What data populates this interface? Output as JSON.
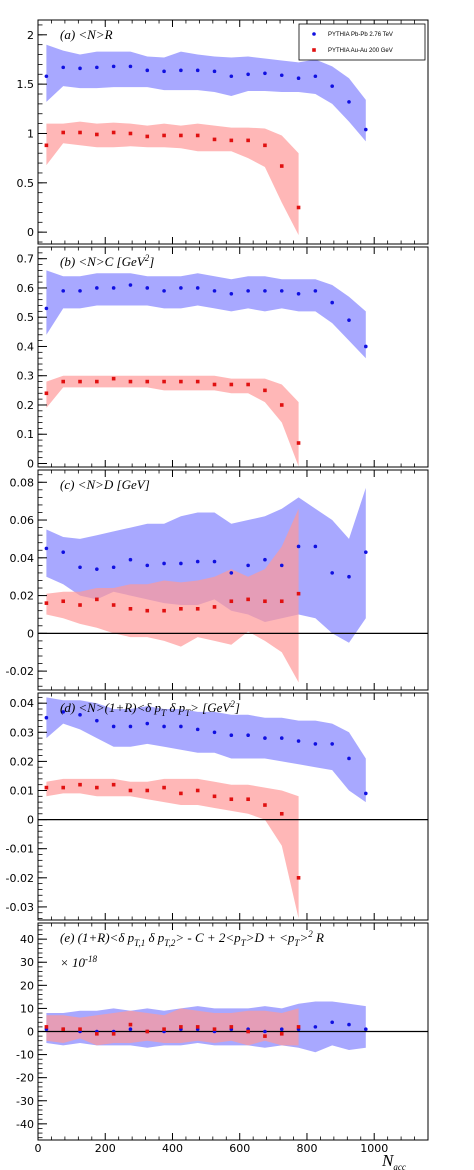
{
  "figure": {
    "x_axis_label": "N",
    "x_axis_label_sub": "acc",
    "x_ticks": [
      "0",
      "200",
      "400",
      "600",
      "800",
      "1000"
    ],
    "legend": [
      {
        "label": "PYTHIA Pb-Pb 2.76 TeV",
        "color": "#1010e0",
        "marker": "circle"
      },
      {
        "label": "PYTHIA Au-Au 200 GeV",
        "color": "#e01010",
        "marker": "square"
      }
    ],
    "colors": {
      "pbpb_marker": "#1010e0",
      "pbpb_band": "#9999ff",
      "auau_marker": "#e01010",
      "auau_band": "#ff9999"
    }
  },
  "chart_data": [
    {
      "type": "scatter",
      "title": "(a) <N>R",
      "xlim": [
        0,
        1160
      ],
      "ylim": [
        -0.12,
        2.15
      ],
      "yticks": [
        0,
        0.5,
        1,
        1.5,
        2
      ],
      "ytick_labels": [
        "0",
        "0.5",
        "1",
        "1.5",
        "2"
      ],
      "zero_line": false,
      "series": [
        {
          "name": "PYTHIA Pb-Pb 2.76 TeV",
          "x": [
            25,
            75,
            125,
            175,
            225,
            275,
            325,
            375,
            425,
            475,
            525,
            575,
            625,
            675,
            725,
            775,
            825,
            875,
            925,
            975
          ],
          "y": [
            1.58,
            1.67,
            1.66,
            1.67,
            1.68,
            1.68,
            1.64,
            1.63,
            1.64,
            1.64,
            1.63,
            1.58,
            1.6,
            1.61,
            1.59,
            1.56,
            1.58,
            1.48,
            1.32,
            1.04
          ],
          "lower": [
            1.32,
            1.48,
            1.46,
            1.46,
            1.47,
            1.47,
            1.47,
            1.44,
            1.44,
            1.44,
            1.42,
            1.38,
            1.43,
            1.43,
            1.42,
            1.42,
            1.4,
            1.3,
            1.12,
            0.92
          ],
          "upper": [
            1.9,
            1.84,
            1.8,
            1.83,
            1.83,
            1.83,
            1.78,
            1.77,
            1.83,
            1.8,
            1.78,
            1.77,
            1.78,
            1.76,
            1.74,
            1.72,
            1.75,
            1.68,
            1.56,
            1.34
          ]
        },
        {
          "name": "PYTHIA Au-Au 200 GeV",
          "x": [
            25,
            75,
            125,
            175,
            225,
            275,
            325,
            375,
            425,
            475,
            525,
            575,
            625,
            675,
            725,
            775
          ],
          "y": [
            0.88,
            1.01,
            1.01,
            0.99,
            1.01,
            1.0,
            0.97,
            0.98,
            0.98,
            0.98,
            0.94,
            0.93,
            0.93,
            0.88,
            0.67,
            0.25
          ],
          "lower": [
            0.68,
            0.9,
            0.88,
            0.86,
            0.86,
            0.87,
            0.86,
            0.86,
            0.85,
            0.82,
            0.82,
            0.82,
            0.75,
            0.66,
            0.3,
            -0.03
          ],
          "upper": [
            1.1,
            1.1,
            1.12,
            1.1,
            1.11,
            1.1,
            1.08,
            1.1,
            1.08,
            1.1,
            1.08,
            1.06,
            1.06,
            1.05,
            0.98,
            0.8
          ]
        }
      ]
    },
    {
      "type": "scatter",
      "title": "(b) <N>C [GeV",
      "title_sup": "2",
      "title_tail": "]",
      "xlim": [
        0,
        1160
      ],
      "ylim": [
        -0.012,
        0.74
      ],
      "yticks": [
        0,
        0.1,
        0.2,
        0.3,
        0.4,
        0.5,
        0.6,
        0.7
      ],
      "ytick_labels": [
        "0",
        "0.1",
        "0.2",
        "0.3",
        "0.4",
        "0.5",
        "0.6",
        "0.7"
      ],
      "zero_line": false,
      "series": [
        {
          "name": "PYTHIA Pb-Pb 2.76 TeV",
          "x": [
            25,
            75,
            125,
            175,
            225,
            275,
            325,
            375,
            425,
            475,
            525,
            575,
            625,
            675,
            725,
            775,
            825,
            875,
            925,
            975
          ],
          "y": [
            0.53,
            0.59,
            0.59,
            0.6,
            0.6,
            0.61,
            0.6,
            0.59,
            0.6,
            0.6,
            0.59,
            0.58,
            0.59,
            0.59,
            0.59,
            0.58,
            0.59,
            0.55,
            0.49,
            0.4
          ],
          "lower": [
            0.44,
            0.53,
            0.53,
            0.54,
            0.54,
            0.54,
            0.54,
            0.53,
            0.53,
            0.54,
            0.53,
            0.52,
            0.53,
            0.52,
            0.53,
            0.52,
            0.52,
            0.48,
            0.42,
            0.36
          ],
          "upper": [
            0.66,
            0.64,
            0.64,
            0.65,
            0.65,
            0.65,
            0.64,
            0.64,
            0.64,
            0.65,
            0.64,
            0.63,
            0.64,
            0.64,
            0.63,
            0.63,
            0.63,
            0.61,
            0.57,
            0.52
          ]
        },
        {
          "name": "PYTHIA Au-Au 200 GeV",
          "x": [
            25,
            75,
            125,
            175,
            225,
            275,
            325,
            375,
            425,
            475,
            525,
            575,
            625,
            675,
            725,
            775
          ],
          "y": [
            0.24,
            0.28,
            0.28,
            0.28,
            0.29,
            0.28,
            0.28,
            0.28,
            0.28,
            0.28,
            0.27,
            0.27,
            0.27,
            0.25,
            0.2,
            0.07
          ],
          "lower": [
            0.19,
            0.26,
            0.26,
            0.26,
            0.26,
            0.26,
            0.26,
            0.25,
            0.25,
            0.25,
            0.25,
            0.24,
            0.24,
            0.21,
            0.14,
            -0.01
          ],
          "upper": [
            0.28,
            0.3,
            0.3,
            0.3,
            0.3,
            0.3,
            0.3,
            0.3,
            0.3,
            0.3,
            0.3,
            0.29,
            0.29,
            0.29,
            0.27,
            0.21
          ]
        }
      ]
    },
    {
      "type": "scatter",
      "title": "(c) <N>D [GeV]",
      "xlim": [
        0,
        1160
      ],
      "ylim": [
        -0.03,
        0.0865
      ],
      "yticks": [
        -0.02,
        0,
        0.02,
        0.04,
        0.06,
        0.08
      ],
      "ytick_labels": [
        "-0.02",
        "0",
        "0.02",
        "0.04",
        "0.06",
        "0.08"
      ],
      "zero_line": true,
      "series": [
        {
          "name": "PYTHIA Pb-Pb 2.76 TeV",
          "x": [
            25,
            75,
            125,
            175,
            225,
            275,
            325,
            375,
            425,
            475,
            525,
            575,
            625,
            675,
            725,
            775,
            825,
            875,
            925,
            975
          ],
          "y": [
            0.045,
            0.043,
            0.035,
            0.034,
            0.035,
            0.039,
            0.036,
            0.037,
            0.037,
            0.038,
            0.038,
            0.032,
            0.036,
            0.039,
            0.036,
            0.046,
            0.046,
            0.032,
            0.03,
            0.043
          ],
          "lower": [
            0.03,
            0.026,
            0.02,
            0.018,
            0.022,
            0.02,
            0.018,
            0.016,
            0.015,
            0.015,
            0.018,
            0.012,
            0.01,
            0.006,
            0.008,
            0.01,
            0.008,
            0.0,
            -0.005,
            0.008
          ],
          "upper": [
            0.055,
            0.051,
            0.05,
            0.052,
            0.054,
            0.056,
            0.058,
            0.058,
            0.062,
            0.064,
            0.064,
            0.058,
            0.06,
            0.062,
            0.066,
            0.072,
            0.066,
            0.06,
            0.05,
            0.077
          ]
        },
        {
          "name": "PYTHIA Au-Au 200 GeV",
          "x": [
            25,
            75,
            125,
            175,
            225,
            275,
            325,
            375,
            425,
            475,
            525,
            575,
            625,
            675,
            725,
            775
          ],
          "y": [
            0.016,
            0.017,
            0.015,
            0.018,
            0.015,
            0.013,
            0.012,
            0.012,
            0.013,
            0.013,
            0.014,
            0.017,
            0.018,
            0.017,
            0.017,
            0.021
          ],
          "lower": [
            0.01,
            0.008,
            0.005,
            0.003,
            0.0,
            -0.002,
            -0.002,
            -0.004,
            -0.007,
            -0.002,
            -0.004,
            -0.006,
            0.001,
            -0.004,
            -0.01,
            -0.026
          ],
          "upper": [
            0.021,
            0.022,
            0.022,
            0.024,
            0.024,
            0.026,
            0.026,
            0.028,
            0.027,
            0.028,
            0.03,
            0.034,
            0.03,
            0.034,
            0.046,
            0.066
          ]
        }
      ]
    },
    {
      "type": "scatter",
      "title": "(d) <N>(1+R)<δ p",
      "title_parts": [
        "(d) <N>(1+R)<δ p",
        "T",
        " δ p",
        "T",
        "> [GeV",
        "2",
        "]"
      ],
      "xlim": [
        0,
        1160
      ],
      "ylim": [
        -0.0345,
        0.0435
      ],
      "yticks": [
        -0.03,
        -0.02,
        -0.01,
        0,
        0.01,
        0.02,
        0.03,
        0.04
      ],
      "ytick_labels": [
        "-0.03",
        "-0.02",
        "-0.01",
        "0",
        "0.01",
        "0.02",
        "0.03",
        "0.04"
      ],
      "zero_line": true,
      "series": [
        {
          "name": "PYTHIA Pb-Pb 2.76 TeV",
          "x": [
            25,
            75,
            125,
            175,
            225,
            275,
            325,
            375,
            425,
            475,
            525,
            575,
            625,
            675,
            725,
            775,
            825,
            875,
            925,
            975
          ],
          "y": [
            0.035,
            0.037,
            0.036,
            0.034,
            0.032,
            0.032,
            0.033,
            0.032,
            0.032,
            0.031,
            0.03,
            0.029,
            0.029,
            0.028,
            0.028,
            0.027,
            0.026,
            0.026,
            0.021,
            0.009
          ],
          "lower": [
            0.028,
            0.033,
            0.031,
            0.028,
            0.025,
            0.025,
            0.026,
            0.025,
            0.024,
            0.023,
            0.023,
            0.021,
            0.021,
            0.021,
            0.02,
            0.019,
            0.018,
            0.017,
            0.01,
            0.006
          ],
          "upper": [
            0.042,
            0.041,
            0.041,
            0.04,
            0.038,
            0.038,
            0.039,
            0.038,
            0.038,
            0.037,
            0.037,
            0.036,
            0.036,
            0.035,
            0.035,
            0.034,
            0.034,
            0.033,
            0.03,
            0.021
          ]
        },
        {
          "name": "PYTHIA Au-Au 200 GeV",
          "x": [
            25,
            75,
            125,
            175,
            225,
            275,
            325,
            375,
            425,
            475,
            525,
            575,
            625,
            675,
            725,
            775
          ],
          "y": [
            0.011,
            0.011,
            0.012,
            0.011,
            0.012,
            0.01,
            0.01,
            0.011,
            0.009,
            0.01,
            0.008,
            0.007,
            0.007,
            0.005,
            0.002,
            -0.02
          ],
          "lower": [
            0.008,
            0.009,
            0.009,
            0.008,
            0.008,
            0.008,
            0.007,
            0.006,
            0.005,
            0.005,
            0.004,
            0.003,
            0.002,
            0.0,
            -0.009,
            -0.034
          ],
          "upper": [
            0.013,
            0.014,
            0.014,
            0.014,
            0.014,
            0.013,
            0.013,
            0.014,
            0.014,
            0.014,
            0.013,
            0.012,
            0.012,
            0.011,
            0.01,
            0.008
          ]
        }
      ]
    },
    {
      "type": "scatter",
      "title_parts": [
        "(e) (1+R)<δ p",
        "T,1",
        " δ p",
        "T,2",
        "> - C + 2<p",
        "T",
        ">D + <p",
        "T",
        ">",
        "2",
        " R"
      ],
      "title_line2": "× 10",
      "title_line2_sup": "-18",
      "xlim": [
        0,
        1160
      ],
      "ylim": [
        -47,
        47
      ],
      "yticks": [
        -40,
        -30,
        -20,
        -10,
        0,
        10,
        20,
        30,
        40
      ],
      "ytick_labels": [
        "-40",
        "-30",
        "-20",
        "-10",
        "0",
        "10",
        "20",
        "30",
        "40"
      ],
      "zero_line": true,
      "series": [
        {
          "name": "PYTHIA Pb-Pb 2.76 TeV",
          "x": [
            25,
            75,
            125,
            175,
            225,
            275,
            325,
            375,
            425,
            475,
            525,
            575,
            625,
            675,
            725,
            775,
            825,
            875,
            925,
            975
          ],
          "y": [
            1,
            1,
            0,
            0,
            0,
            1,
            0,
            0,
            1,
            1,
            0,
            1,
            1,
            0,
            1,
            1,
            2,
            4,
            3,
            1
          ],
          "lower": [
            -5,
            -6,
            -5,
            -6,
            -6,
            -6,
            -7,
            -6,
            -6,
            -5,
            -6,
            -6,
            -6,
            -7,
            -6,
            -7,
            -9,
            -6,
            -8,
            -7
          ],
          "upper": [
            8,
            8,
            9,
            9,
            10,
            9,
            10,
            9,
            10,
            11,
            10,
            10,
            10,
            11,
            10,
            12,
            13,
            13,
            12,
            11
          ]
        },
        {
          "name": "PYTHIA Au-Au 200 GeV",
          "x": [
            25,
            75,
            125,
            175,
            225,
            275,
            325,
            375,
            425,
            475,
            525,
            575,
            625,
            675,
            725,
            775
          ],
          "y": [
            2,
            1,
            1,
            -1,
            -1,
            3,
            0,
            1,
            2,
            2,
            1,
            2,
            0,
            -2,
            -1,
            2
          ],
          "lower": [
            -4,
            -5,
            -3,
            -6,
            -5,
            -5,
            -4,
            -5,
            -5,
            -4,
            -5,
            -4,
            -6,
            -4,
            -6,
            -6
          ],
          "upper": [
            7,
            7,
            6,
            7,
            8,
            9,
            8,
            7,
            10,
            9,
            8,
            8,
            9,
            9,
            8,
            10
          ]
        }
      ]
    }
  ]
}
